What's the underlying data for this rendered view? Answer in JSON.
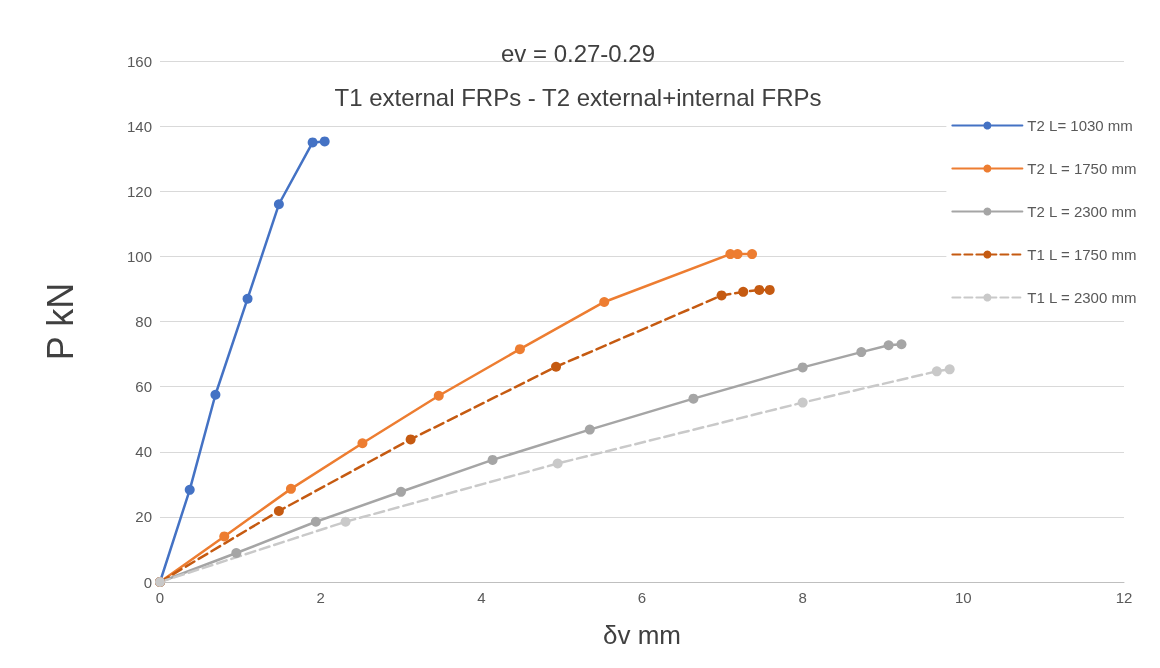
{
  "chart_data": {
    "type": "line",
    "title": "ev = 0.27-0.29",
    "subtitle": "T1 external FRPs - T2 external+internal FRPs",
    "xlabel": "δv mm",
    "ylabel": "P kN",
    "xlim": [
      0,
      12
    ],
    "xticks": [
      0,
      2,
      4,
      6,
      8,
      10,
      12
    ],
    "ylim": [
      0,
      160
    ],
    "yticks": [
      0,
      20,
      40,
      60,
      80,
      100,
      120,
      140,
      160
    ],
    "grid": "y",
    "legend": "right",
    "marker": "circle",
    "series": [
      {
        "name": "T2 L= 1030 mm",
        "color": "#4472c4",
        "line_style": "solid",
        "x": [
          0,
          0.37,
          0.69,
          1.09,
          1.48,
          1.9,
          2.05
        ],
        "values": [
          0,
          28.3,
          57.5,
          87,
          116,
          135,
          135.3
        ]
      },
      {
        "name": "T2 L = 1750 mm",
        "color": "#ed7d31",
        "line_style": "solid",
        "x": [
          0,
          0.8,
          1.63,
          2.52,
          3.47,
          4.48,
          5.53,
          7.1,
          7.19,
          7.37
        ],
        "values": [
          0,
          14,
          28.6,
          42.6,
          57.2,
          71.5,
          86,
          100.7,
          100.7,
          100.7
        ]
      },
      {
        "name": "T2 L = 2300 mm",
        "color": "#a5a5a5",
        "line_style": "solid",
        "x": [
          0,
          0.95,
          1.94,
          3.0,
          4.14,
          5.35,
          6.64,
          8.0,
          8.73,
          9.07,
          9.23
        ],
        "values": [
          0,
          8.9,
          18.5,
          27.7,
          37.5,
          46.8,
          56.3,
          65.9,
          70.6,
          72.7,
          73
        ]
      },
      {
        "name": "T1 L = 1750 mm",
        "color": "#c55a11",
        "line_style": "dashed",
        "x": [
          0,
          1.48,
          3.12,
          4.93,
          6.99,
          7.26,
          7.46,
          7.59
        ],
        "values": [
          0,
          21.8,
          43.8,
          66.1,
          88,
          89.1,
          89.7,
          89.7
        ]
      },
      {
        "name": "T1 L = 2300 mm",
        "color": "#c9c9c9",
        "line_style": "dashed",
        "x": [
          0,
          2.31,
          4.95,
          8.0,
          9.67,
          9.83
        ],
        "values": [
          0,
          18.5,
          36.4,
          55.1,
          64.7,
          65.3
        ]
      }
    ]
  }
}
